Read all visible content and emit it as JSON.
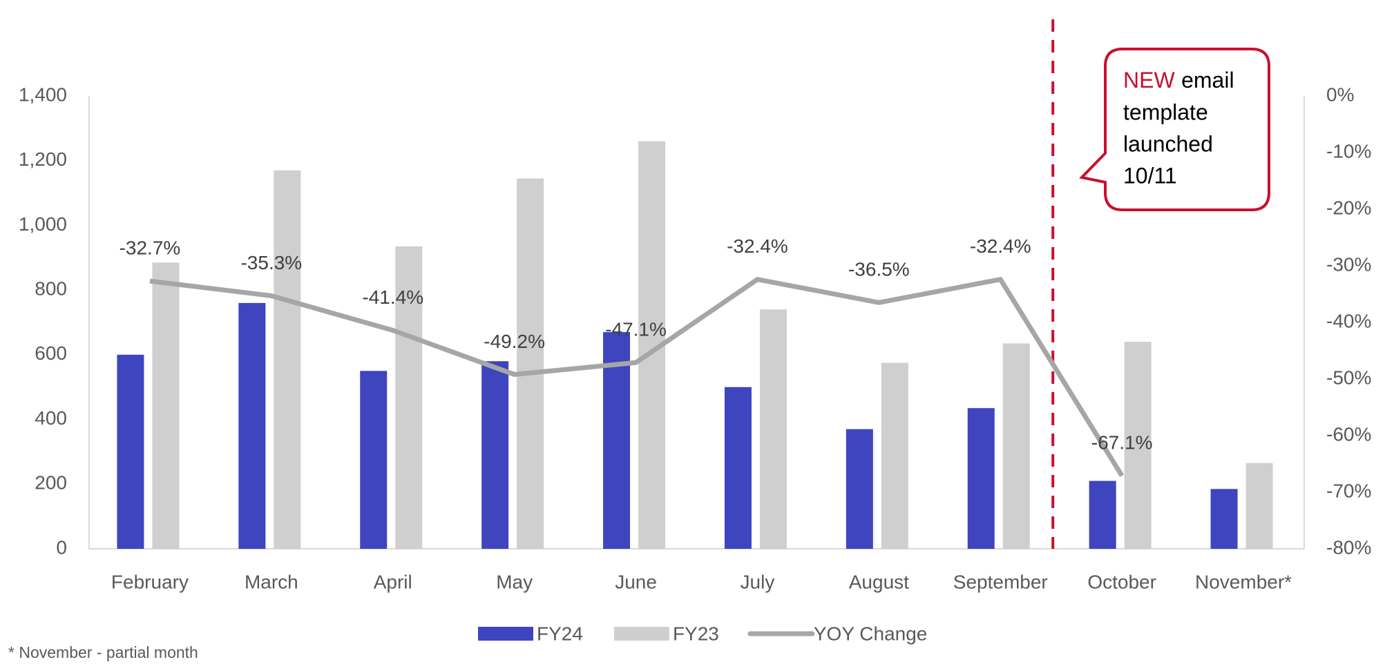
{
  "chart_data": {
    "type": "bar",
    "categories": [
      "February",
      "March",
      "April",
      "May",
      "June",
      "July",
      "August",
      "September",
      "October",
      "November*"
    ],
    "series": [
      {
        "name": "FY24",
        "color": "#3f44bf",
        "values": [
          600,
          760,
          550,
          580,
          670,
          500,
          370,
          435,
          210,
          185
        ]
      },
      {
        "name": "FY23",
        "color": "#d0cfd0",
        "values": [
          885,
          1170,
          935,
          1145,
          1260,
          740,
          575,
          635,
          640,
          265
        ]
      },
      {
        "name": "YOY Change",
        "type": "line",
        "axis": "y2",
        "color": "#a6a6a6",
        "values": [
          -32.7,
          -35.3,
          -41.4,
          -49.2,
          -47.1,
          -32.4,
          -36.5,
          -32.4,
          -67.1,
          null
        ],
        "value_labels": [
          "-32.7%",
          "-35.3%",
          "-41.4%",
          "-49.2%",
          "-47.1%",
          "-32.4%",
          "-36.5%",
          "-32.4%",
          "-67.1%",
          null
        ]
      }
    ],
    "ylim": [
      0,
      1400
    ],
    "yticks": [
      0,
      200,
      400,
      {
        "value": 600,
        "label": "600"
      },
      800,
      {
        "value": 1000,
        "label": "1,000"
      },
      {
        "value": 1200,
        "label": "1,200"
      },
      {
        "value": 1400,
        "label": "1,400"
      }
    ],
    "y2lim": [
      -80,
      0
    ],
    "y2ticks": [
      {
        "value": -80,
        "label": "-80%"
      },
      {
        "value": -70,
        "label": "-70%"
      },
      {
        "value": -60,
        "label": "-60%"
      },
      {
        "value": -50,
        "label": "-50%"
      },
      {
        "value": -40,
        "label": "-40%"
      },
      {
        "value": -30,
        "label": "-30%"
      },
      {
        "value": -20,
        "label": "-20%"
      },
      {
        "value": -10,
        "label": "-10%"
      },
      {
        "value": 0,
        "label": "0%"
      }
    ],
    "legend": "bottom",
    "annotation": {
      "highlight": "NEW",
      "lines": [
        "email",
        "template",
        "launched",
        "10/11"
      ],
      "color": "#c8102e"
    },
    "footnote": "* November - partial month"
  }
}
